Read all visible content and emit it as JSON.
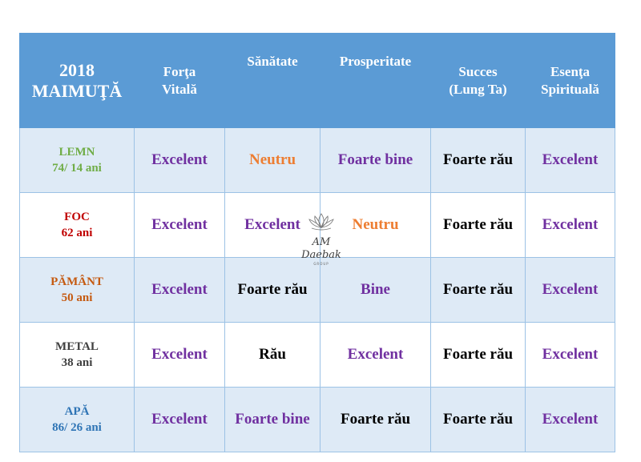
{
  "header": {
    "year": "2018",
    "sign": "MAIMUŢĂ",
    "columns": [
      [
        "Forţa",
        "Vitală"
      ],
      [
        "Sănătate",
        ""
      ],
      [
        "Prosperitate",
        ""
      ],
      [
        "Succes",
        "(Lung Ta)"
      ],
      [
        "Esenţa",
        "Spirituală"
      ]
    ]
  },
  "rows": [
    {
      "element": "LEMN",
      "ages": "74/ 14 ani",
      "element_color": "#70ad47",
      "values": [
        "Excelent",
        "Neutru",
        "Foarte bine",
        "Foarte rău",
        "Excelent"
      ]
    },
    {
      "element": "FOC",
      "ages": "62 ani",
      "element_color": "#c00000",
      "values": [
        "Excelent",
        "Excelent",
        "Neutru",
        "Foarte rău",
        "Excelent"
      ]
    },
    {
      "element": "PĂMÂNT",
      "ages": "50 ani",
      "element_color": "#c55a11",
      "values": [
        "Excelent",
        "Foarte rău",
        "Bine",
        "Foarte rău",
        "Excelent"
      ]
    },
    {
      "element": "METAL",
      "ages": "38 ani",
      "element_color": "#404040",
      "values": [
        "Excelent",
        "Rău",
        "Excelent",
        "Foarte rău",
        "Excelent"
      ]
    },
    {
      "element": "APĂ",
      "ages": "86/ 26 ani",
      "element_color": "#2e74b5",
      "values": [
        "Excelent",
        "Foarte bine",
        "Foarte rău",
        "Foarte rău",
        "Excelent"
      ]
    }
  ],
  "colors": {
    "header_bg": "#5b9bd5",
    "row_shade": "#deeaf6",
    "excelent": "#7030a0",
    "foarte_bine": "#7030a0",
    "bine": "#7030a0",
    "neutru": "#ed7d31",
    "rau": "#000000"
  },
  "watermark": {
    "logo": "lotus-icon",
    "name": "AM Daebak",
    "sub": "GROUP"
  }
}
